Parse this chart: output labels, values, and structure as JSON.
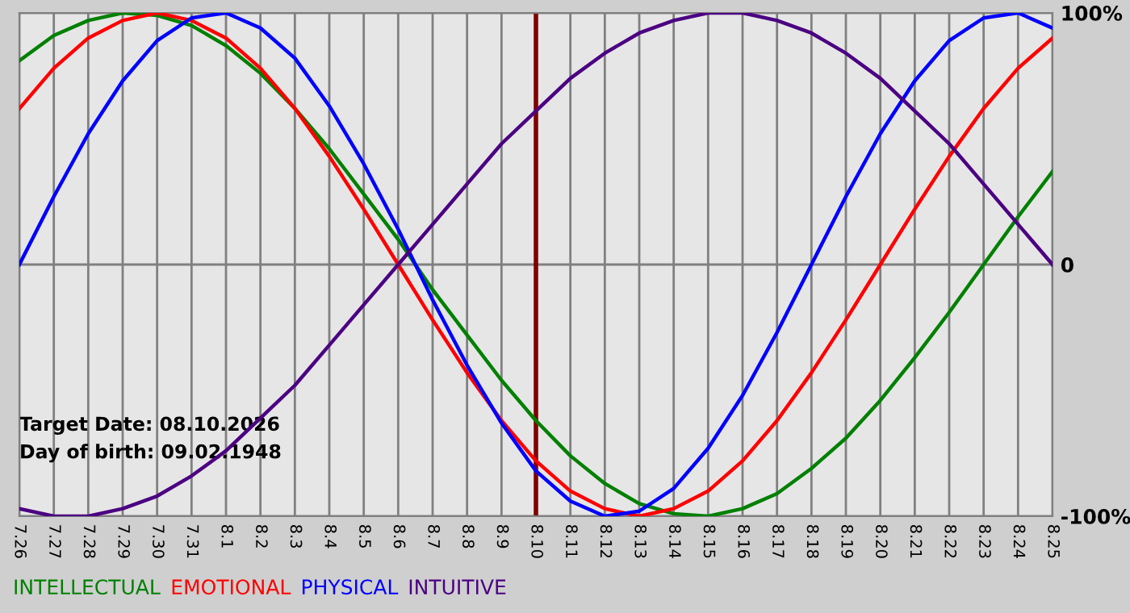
{
  "chart_data": {
    "type": "line",
    "categories": [
      "7.26",
      "7.27",
      "7.28",
      "7.29",
      "7.30",
      "7.31",
      "8.1",
      "8.2",
      "8.3",
      "8.4",
      "8.5",
      "8.6",
      "8.7",
      "8.8",
      "8.9",
      "8.10",
      "8.11",
      "8.12",
      "8.13",
      "8.14",
      "8.15",
      "8.16",
      "8.17",
      "8.18",
      "8.19",
      "8.20",
      "8.21",
      "8.22",
      "8.23",
      "8.24",
      "8.25"
    ],
    "series": [
      {
        "name": "INTELLECTUAL",
        "color": "#008000",
        "values": [
          81,
          91,
          97,
          100,
          99,
          95,
          87,
          76,
          62,
          46,
          28,
          10,
          -10,
          -28,
          -46,
          -62,
          -76,
          -87,
          -95,
          -99,
          -100,
          -97,
          -91,
          -81,
          -69,
          -54,
          -37,
          -19,
          0,
          19,
          37
        ]
      },
      {
        "name": "EMOTIONAL",
        "color": "#ff0000",
        "values": [
          62,
          78,
          90,
          97,
          100,
          97,
          90,
          78,
          62,
          43,
          22,
          0,
          -22,
          -43,
          -62,
          -78,
          -90,
          -97,
          -100,
          -97,
          -90,
          -78,
          -62,
          -43,
          -22,
          0,
          22,
          43,
          62,
          78,
          90
        ]
      },
      {
        "name": "PHYSICAL",
        "color": "#0000ff",
        "values": [
          0,
          27,
          52,
          73,
          89,
          98,
          100,
          94,
          82,
          63,
          40,
          14,
          -14,
          -40,
          -63,
          -82,
          -94,
          -100,
          -98,
          -89,
          -73,
          -52,
          -27,
          0,
          27,
          52,
          73,
          89,
          98,
          100,
          94
        ]
      },
      {
        "name": "INTUITIVE",
        "color": "#4b0082",
        "values": [
          -97,
          -100,
          -100,
          -97,
          -92,
          -84,
          -74,
          -61,
          -48,
          -32,
          -16,
          0,
          16,
          32,
          48,
          61,
          74,
          84,
          92,
          97,
          100,
          100,
          97,
          92,
          84,
          74,
          61,
          48,
          32,
          16,
          0
        ]
      }
    ],
    "ylim": [
      -100,
      100
    ],
    "yticks": [
      {
        "value": 100,
        "label": "100%"
      },
      0,
      {
        "value": -100,
        "label": "-100%"
      }
    ],
    "ref_lines": [
      {
        "axis": "x",
        "value": "8.10",
        "label": null,
        "color": "#800000"
      }
    ],
    "annotations": [
      "Target Date: 08.10.2026",
      "Day of birth: 09.02.1948"
    ],
    "grid": true,
    "legend": "bottom",
    "marker": "none",
    "line_style": "solid"
  }
}
